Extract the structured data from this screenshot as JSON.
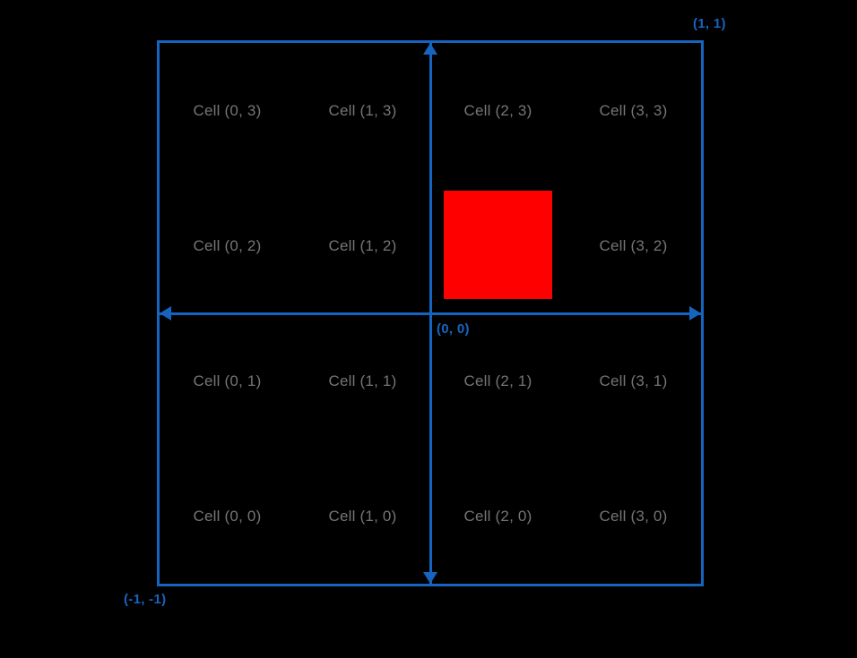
{
  "figure": {
    "corner_top_right": "(1, 1)",
    "corner_bottom_left": "(-1, -1)",
    "origin_label": "(0, 0)"
  },
  "grid": {
    "rows": [
      [
        "Cell (0, 3)",
        "Cell (1, 3)",
        "Cell (2, 3)",
        "Cell (3, 3)"
      ],
      [
        "Cell (0, 2)",
        "Cell (1, 2)",
        "",
        "Cell (3, 2)"
      ],
      [
        "Cell (0, 1)",
        "Cell (1, 1)",
        "Cell (2, 1)",
        "Cell (3, 1)"
      ],
      [
        "Cell (0, 0)",
        "Cell (1, 0)",
        "Cell (2, 0)",
        "Cell (3, 0)"
      ]
    ]
  },
  "colors": {
    "axis_blue": "#1565c0",
    "cell_text": "#757575",
    "highlight_red": "#ff0000",
    "background": "#000000"
  }
}
